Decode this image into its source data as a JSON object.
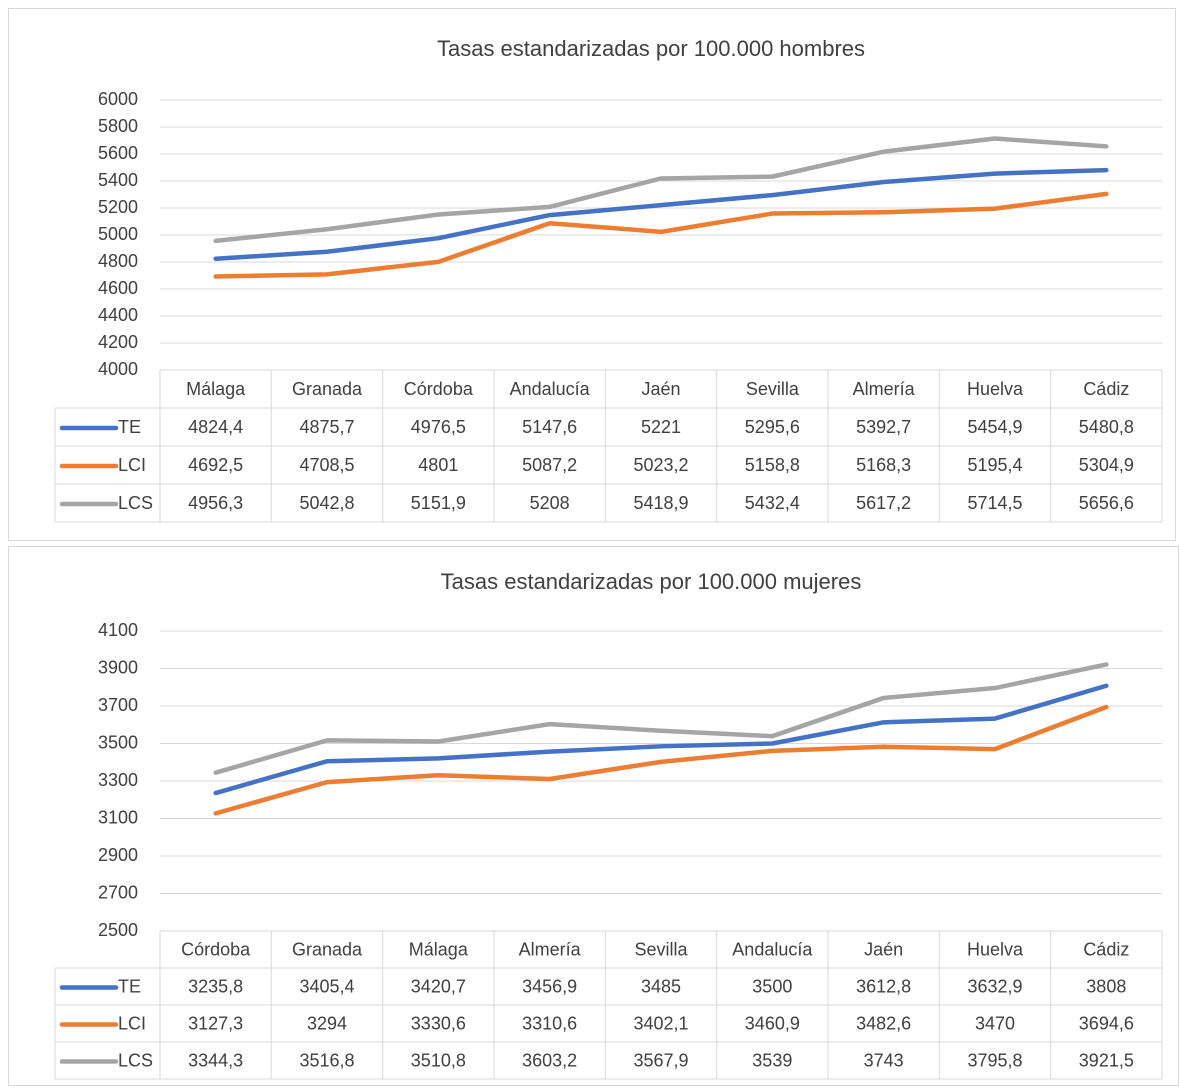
{
  "chart_data": [
    {
      "type": "line",
      "title": "Tasas estandarizadas por 100.000 hombres",
      "categories": [
        "Málaga",
        "Granada",
        "Córdoba",
        "Andalucía",
        "Jaén",
        "Sevilla",
        "Almería",
        "Huelva",
        "Cádiz"
      ],
      "series": [
        {
          "name": "TE",
          "color": "#4472c4",
          "values": [
            4824.4,
            4875.7,
            4976.5,
            5147.6,
            5221,
            5295.6,
            5392.7,
            5454.9,
            5480.8
          ],
          "value_labels": [
            "4824,4",
            "4875,7",
            "4976,5",
            "5147,6",
            "5221",
            "5295,6",
            "5392,7",
            "5454,9",
            "5480,8"
          ]
        },
        {
          "name": "LCI",
          "color": "#ed7d31",
          "values": [
            4692.5,
            4708.5,
            4801,
            5087.2,
            5023.2,
            5158.8,
            5168.3,
            5195.4,
            5304.9
          ],
          "value_labels": [
            "4692,5",
            "4708,5",
            "4801",
            "5087,2",
            "5023,2",
            "5158,8",
            "5168,3",
            "5195,4",
            "5304,9"
          ]
        },
        {
          "name": "LCS",
          "color": "#a5a5a5",
          "values": [
            4956.3,
            5042.8,
            5151.9,
            5208,
            5418.9,
            5432.4,
            5617.2,
            5714.5,
            5656.6
          ],
          "value_labels": [
            "4956,3",
            "5042,8",
            "5151,9",
            "5208",
            "5418,9",
            "5432,4",
            "5617,2",
            "5714,5",
            "5656,6"
          ]
        }
      ],
      "ylim": [
        4000,
        6000
      ],
      "yticks": [
        4000,
        4200,
        4400,
        4600,
        4800,
        5000,
        5200,
        5400,
        5600,
        5800,
        6000
      ],
      "grid": true,
      "data_table": true
    },
    {
      "type": "line",
      "title": "Tasas estandarizadas por 100.000 mujeres",
      "categories": [
        "Córdoba",
        "Granada",
        "Málaga",
        "Almería",
        "Sevilla",
        "Andalucía",
        "Jaén",
        "Huelva",
        "Cádiz"
      ],
      "series": [
        {
          "name": "TE",
          "color": "#4472c4",
          "values": [
            3235.8,
            3405.4,
            3420.7,
            3456.9,
            3485,
            3500,
            3612.8,
            3632.9,
            3808
          ],
          "value_labels": [
            "3235,8",
            "3405,4",
            "3420,7",
            "3456,9",
            "3485",
            "3500",
            "3612,8",
            "3632,9",
            "3808"
          ]
        },
        {
          "name": "LCI",
          "color": "#ed7d31",
          "values": [
            3127.3,
            3294,
            3330.6,
            3310.6,
            3402.1,
            3460.9,
            3482.6,
            3470,
            3694.6
          ],
          "value_labels": [
            "3127,3",
            "3294",
            "3330,6",
            "3310,6",
            "3402,1",
            "3460,9",
            "3482,6",
            "3470",
            "3694,6"
          ]
        },
        {
          "name": "LCS",
          "color": "#a5a5a5",
          "values": [
            3344.3,
            3516.8,
            3510.8,
            3603.2,
            3567.9,
            3539,
            3743,
            3795.8,
            3921.5
          ],
          "value_labels": [
            "3344,3",
            "3516,8",
            "3510,8",
            "3603,2",
            "3567,9",
            "3539",
            "3743",
            "3795,8",
            "3921,5"
          ]
        }
      ],
      "ylim": [
        2500,
        4100
      ],
      "yticks": [
        2500,
        2700,
        2900,
        3100,
        3300,
        3500,
        3700,
        3900,
        4100
      ],
      "grid": true,
      "data_table": true
    }
  ]
}
